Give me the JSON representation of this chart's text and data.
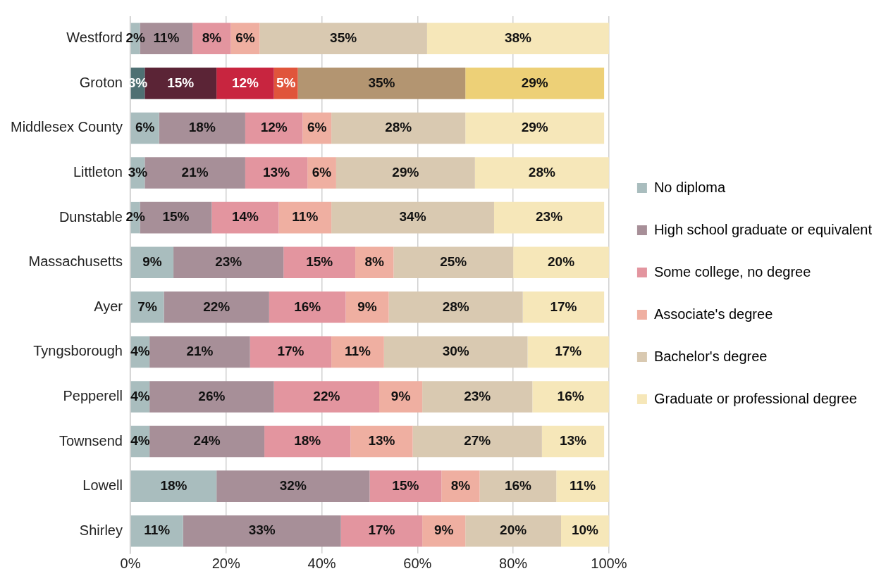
{
  "chart_data": {
    "type": "bar",
    "orientation": "horizontal",
    "stacked": true,
    "grid": "x",
    "legend": "right",
    "categories": [
      "Westford",
      "Groton",
      "Middlesex County",
      "Littleton",
      "Dunstable",
      "Massachusetts",
      "Ayer",
      "Tyngsborough",
      "Pepperell",
      "Townsend",
      "Lowell",
      "Shirley"
    ],
    "xlim": [
      0,
      100
    ],
    "xticks": [
      {
        "value": 0,
        "label": "0%"
      },
      {
        "value": 20,
        "label": "20%"
      },
      {
        "value": 40,
        "label": "40%"
      },
      {
        "value": 60,
        "label": "60%"
      },
      {
        "value": 80,
        "label": "80%"
      },
      {
        "value": 100,
        "label": "100%"
      }
    ],
    "series": [
      {
        "name": "No diploma",
        "color": "#a9bdbe",
        "colors": [
          "#a9bdbe",
          "#4f7073",
          "#a9bdbe",
          "#a9bdbe",
          "#a9bdbe",
          "#a9bdbe",
          "#a9bdbe",
          "#a9bdbe",
          "#a9bdbe",
          "#a9bdbe",
          "#a9bdbe",
          "#a9bdbe"
        ],
        "values": [
          2,
          3,
          6,
          3,
          2,
          9,
          7,
          4,
          4,
          4,
          18,
          11
        ],
        "value_labels": [
          "2%",
          "3%",
          "6%",
          "3%",
          "2%",
          "9%",
          "7%",
          "4%",
          "4%",
          "4%",
          "18%",
          "11%"
        ]
      },
      {
        "name": "High school graduate or equivalent",
        "color": "#a78f98",
        "colors": [
          "#a78f98",
          "#5b2436",
          "#a78f98",
          "#a78f98",
          "#a78f98",
          "#a78f98",
          "#a78f98",
          "#a78f98",
          "#a78f98",
          "#a78f98",
          "#a78f98",
          "#a78f98"
        ],
        "values": [
          11,
          15,
          18,
          21,
          15,
          23,
          22,
          21,
          26,
          24,
          32,
          33
        ],
        "value_labels": [
          "11%",
          "15%",
          "18%",
          "21%",
          "15%",
          "23%",
          "22%",
          "21%",
          "26%",
          "24%",
          "32%",
          "33%"
        ]
      },
      {
        "name": "Some college, no degree",
        "color": "#e3959f",
        "colors": [
          "#e3959f",
          "#c8253f",
          "#e3959f",
          "#e3959f",
          "#e3959f",
          "#e3959f",
          "#e3959f",
          "#e3959f",
          "#e3959f",
          "#e3959f",
          "#e3959f",
          "#e3959f"
        ],
        "values": [
          8,
          12,
          12,
          13,
          14,
          15,
          16,
          17,
          22,
          18,
          15,
          17
        ],
        "value_labels": [
          "8%",
          "12%",
          "12%",
          "13%",
          "14%",
          "15%",
          "16%",
          "17%",
          "22%",
          "18%",
          "15%",
          "17%"
        ]
      },
      {
        "name": "Associate's degree",
        "color": "#efafa1",
        "colors": [
          "#efafa1",
          "#e0553b",
          "#efafa1",
          "#efafa1",
          "#efafa1",
          "#efafa1",
          "#efafa1",
          "#efafa1",
          "#efafa1",
          "#efafa1",
          "#efafa1",
          "#efafa1"
        ],
        "values": [
          6,
          5,
          6,
          6,
          11,
          8,
          9,
          11,
          9,
          13,
          8,
          9
        ],
        "value_labels": [
          "6%",
          "5%",
          "6%",
          "6%",
          "11%",
          "8%",
          "9%",
          "11%",
          "9%",
          "13%",
          "8%",
          "9%"
        ]
      },
      {
        "name": "Bachelor's degree",
        "color": "#d9c9b1",
        "colors": [
          "#d9c9b1",
          "#b39571",
          "#d9c9b1",
          "#d9c9b1",
          "#d9c9b1",
          "#d9c9b1",
          "#d9c9b1",
          "#d9c9b1",
          "#d9c9b1",
          "#d9c9b1",
          "#d9c9b1",
          "#d9c9b1"
        ],
        "values": [
          35,
          35,
          28,
          29,
          34,
          25,
          28,
          30,
          23,
          27,
          16,
          20
        ],
        "value_labels": [
          "35%",
          "35%",
          "28%",
          "29%",
          "34%",
          "25%",
          "28%",
          "30%",
          "23%",
          "27%",
          "16%",
          "20%"
        ]
      },
      {
        "name": "Graduate or professional degree",
        "color": "#f6e7b9",
        "colors": [
          "#f6e7b9",
          "#edd077",
          "#f6e7b9",
          "#f6e7b9",
          "#f6e7b9",
          "#f6e7b9",
          "#f6e7b9",
          "#f6e7b9",
          "#f6e7b9",
          "#f6e7b9",
          "#f6e7b9",
          "#f6e7b9"
        ],
        "values": [
          38,
          29,
          29,
          28,
          23,
          20,
          17,
          17,
          16,
          13,
          11,
          10
        ],
        "value_labels": [
          "38%",
          "29%",
          "29%",
          "28%",
          "23%",
          "20%",
          "17%",
          "17%",
          "16%",
          "13%",
          "11%",
          "10%"
        ]
      }
    ]
  }
}
